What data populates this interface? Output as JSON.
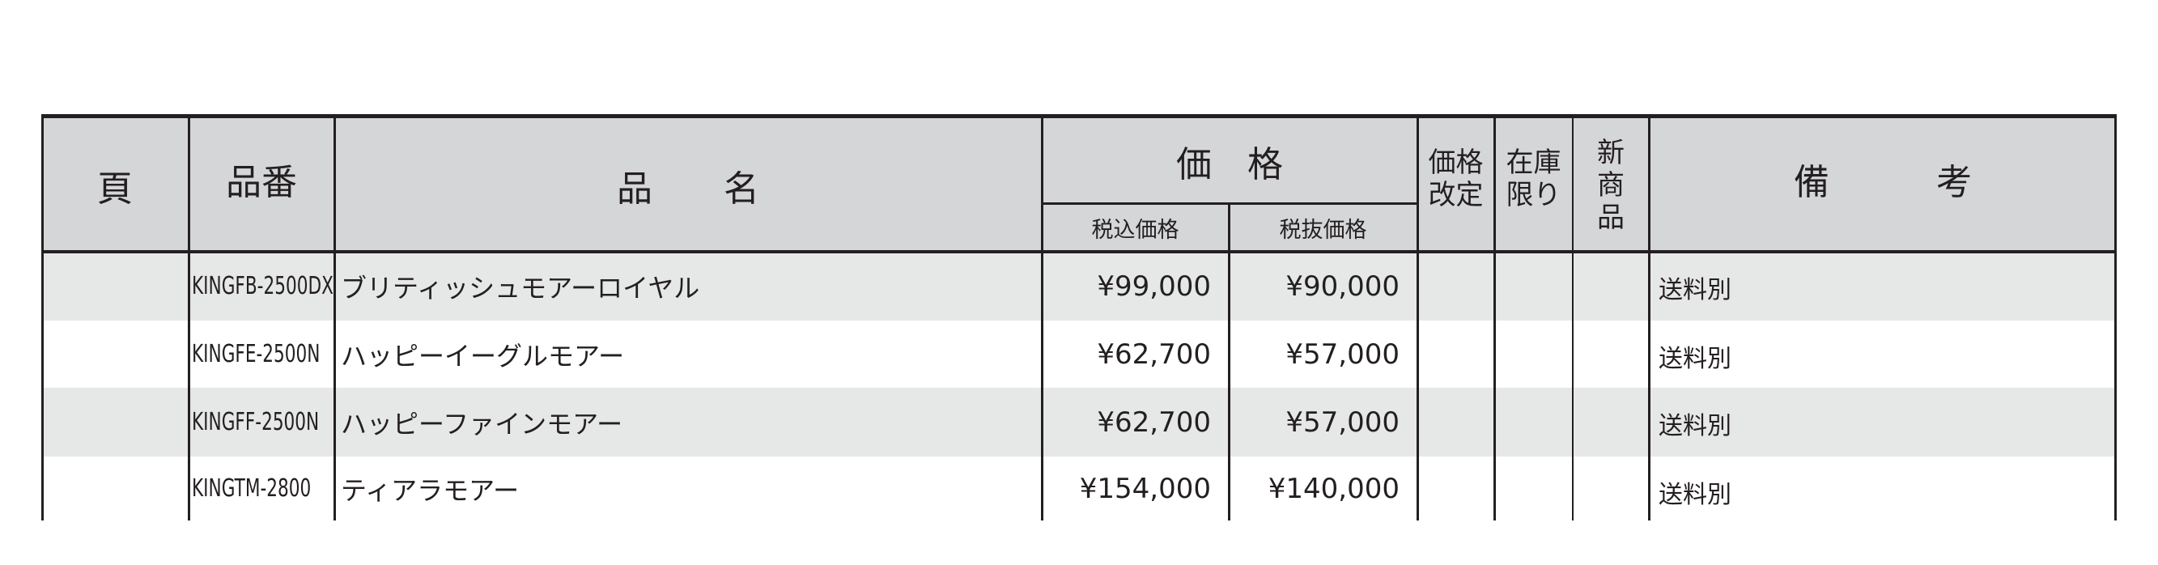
{
  "header": {
    "page": "頁",
    "code": "品番",
    "name": "品　　名",
    "price": "価　格",
    "price_incl": "税込価格",
    "price_excl": "税抜価格",
    "price_revised": "価格\n改定",
    "stock_limited": "在庫\n限り",
    "new_product": "新\n商\n品",
    "remarks": "備　　　考"
  },
  "rows": [
    {
      "page": "",
      "code": "KINGFB-2500DX",
      "name": "ブリティッシュモアーロイヤル",
      "price_incl": "¥99,000",
      "price_excl": "¥90,000",
      "note": "送料別"
    },
    {
      "page": "",
      "code": "KINGFE-2500N",
      "name": "ハッピーイーグルモアー",
      "price_incl": "¥62,700",
      "price_excl": "¥57,000",
      "note": "送料別"
    },
    {
      "page": "",
      "code": "KINGFF-2500N",
      "name": "ハッピーファインモアー",
      "price_incl": "¥62,700",
      "price_excl": "¥57,000",
      "note": "送料別"
    },
    {
      "page": "",
      "code": "KINGTM-2800",
      "name": "ティアラモアー",
      "price_incl": "¥154,000",
      "price_excl": "¥140,000",
      "note": "送料別"
    }
  ],
  "colors": {
    "header_bg": "#d5d6d8",
    "stripe_bg": "#e6e7e7",
    "line": "#231f20"
  }
}
